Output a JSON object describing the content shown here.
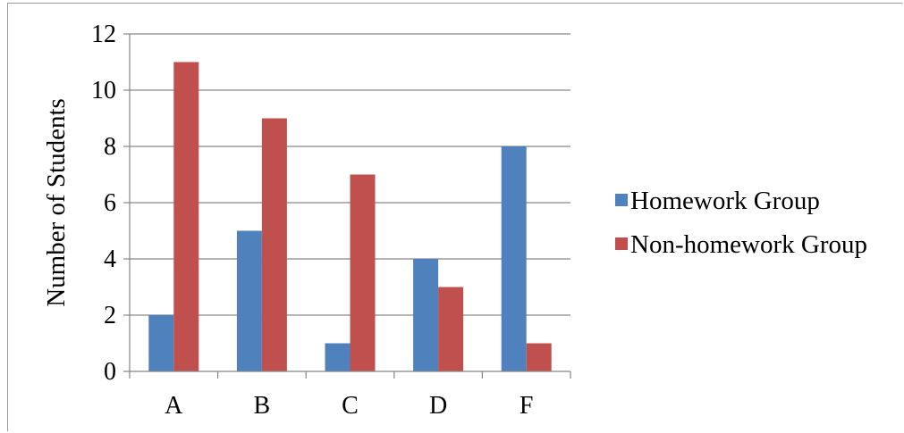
{
  "chart_data": {
    "type": "bar",
    "title": "",
    "xlabel": "",
    "ylabel": "Number of Students",
    "categories": [
      "A",
      "B",
      "C",
      "D",
      "F"
    ],
    "ylim": [
      0,
      12
    ],
    "yticks": [
      0,
      2,
      4,
      6,
      8,
      10,
      12
    ],
    "grid": true,
    "legend_position": "right",
    "series": [
      {
        "name": "Homework Group",
        "color": "#4f81bd",
        "values": [
          2,
          5,
          1,
          4,
          8
        ]
      },
      {
        "name": "Non-homework Group",
        "color": "#c0504d",
        "values": [
          11,
          9,
          7,
          3,
          1
        ]
      }
    ]
  }
}
